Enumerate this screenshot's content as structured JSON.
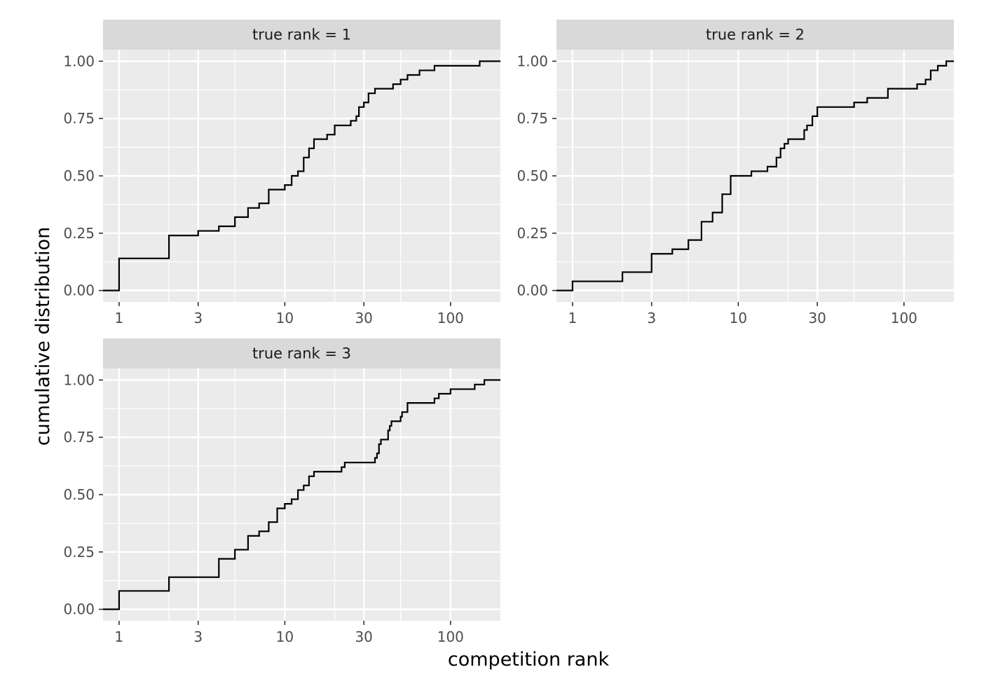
{
  "chart_data": {
    "type": "line",
    "style": "step",
    "xlabel": "competition rank",
    "ylabel": "cumulative distribution",
    "x_scale": "log10",
    "xlim": [
      0.8,
      200
    ],
    "ylim": [
      -0.05,
      1.05
    ],
    "x_ticks": [
      1,
      3,
      10,
      30,
      100
    ],
    "y_ticks": [
      0,
      0.25,
      0.5,
      0.75,
      1
    ],
    "grid": true,
    "colors": {
      "panel": "#ebebeb",
      "strip": "#d9d9d9",
      "grid": "#ffffff",
      "line": "#000000"
    },
    "panels": [
      {
        "title": "true rank = 1",
        "x": [
          1,
          2,
          3,
          4,
          5,
          6,
          7,
          8,
          10,
          11,
          12,
          13,
          14,
          15,
          18,
          20,
          25,
          27,
          28,
          30,
          32,
          35,
          45,
          50,
          55,
          65,
          80,
          150
        ],
        "y": [
          0.14,
          0.24,
          0.26,
          0.28,
          0.32,
          0.36,
          0.38,
          0.44,
          0.46,
          0.5,
          0.52,
          0.58,
          0.62,
          0.66,
          0.68,
          0.72,
          0.74,
          0.76,
          0.8,
          0.82,
          0.86,
          0.88,
          0.9,
          0.92,
          0.94,
          0.96,
          0.98,
          1.0
        ]
      },
      {
        "title": "true rank = 2",
        "x": [
          1,
          2,
          3,
          4,
          5,
          6,
          7,
          8,
          9,
          12,
          15,
          17,
          18,
          19,
          20,
          25,
          26,
          28,
          30,
          50,
          60,
          80,
          120,
          135,
          145,
          160,
          180
        ],
        "y": [
          0.04,
          0.08,
          0.16,
          0.18,
          0.22,
          0.3,
          0.34,
          0.42,
          0.5,
          0.52,
          0.54,
          0.58,
          0.62,
          0.64,
          0.66,
          0.7,
          0.72,
          0.76,
          0.8,
          0.82,
          0.84,
          0.88,
          0.9,
          0.92,
          0.96,
          0.98,
          1.0
        ]
      },
      {
        "title": "true rank = 3",
        "x": [
          1,
          2,
          4,
          5,
          6,
          7,
          8,
          9,
          10,
          11,
          12,
          13,
          14,
          15,
          22,
          23,
          35,
          36,
          37,
          38,
          42,
          43,
          44,
          50,
          51,
          55,
          80,
          85,
          100,
          140,
          160
        ],
        "y": [
          0.08,
          0.14,
          0.22,
          0.26,
          0.32,
          0.34,
          0.38,
          0.44,
          0.46,
          0.48,
          0.52,
          0.54,
          0.58,
          0.6,
          0.62,
          0.64,
          0.66,
          0.68,
          0.72,
          0.74,
          0.78,
          0.8,
          0.82,
          0.84,
          0.86,
          0.9,
          0.92,
          0.94,
          0.96,
          0.98,
          1.0
        ]
      }
    ]
  }
}
